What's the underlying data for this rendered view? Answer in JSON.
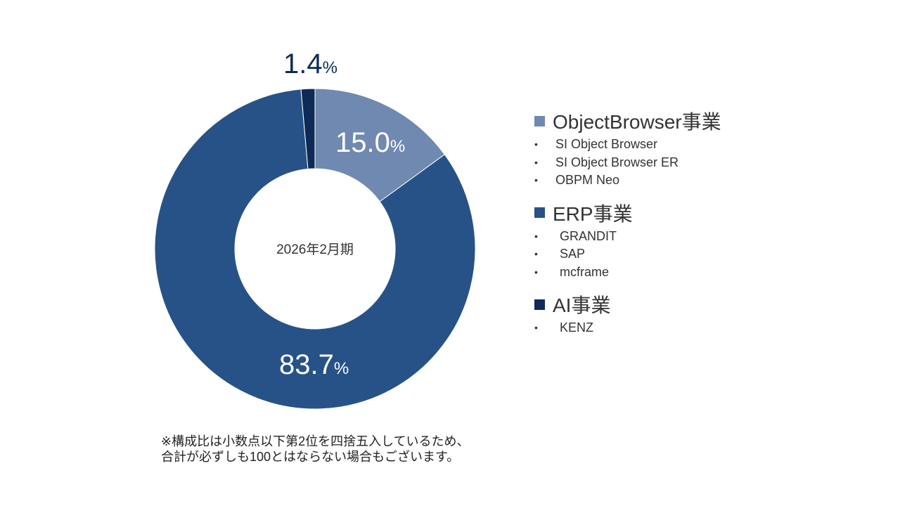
{
  "chart_data": {
    "type": "pie",
    "center_label": "2026年2月期",
    "categories": [
      "ObjectBrowser事業",
      "ERP事業",
      "AI事業"
    ],
    "values": [
      15.0,
      83.7,
      1.4
    ],
    "labels": [
      "15.0",
      "83.7",
      "1.4"
    ],
    "unit": "%",
    "colors": [
      "#7089b0",
      "#275287",
      "#0e2b57"
    ],
    "donut": true,
    "legend_position": "right"
  },
  "legend": [
    {
      "title": "ObjectBrowser事業",
      "color": "#7089b0",
      "items": [
        "SI Object Browser",
        "SI Object Browser ER",
        "OBPM Neo"
      ]
    },
    {
      "title": "ERP事業",
      "color": "#275287",
      "items": [
        "GRANDIT",
        "SAP",
        "mcframe"
      ]
    },
    {
      "title": "AI事業",
      "color": "#0e2b57",
      "items": [
        "KENZ"
      ]
    }
  ],
  "bullet_glyph": "•",
  "footnote": {
    "line1": "※構成比は小数点以下第2位を四捨五入しているため、",
    "line2": "合計が必ずしも100とはならない場合もございます。"
  }
}
